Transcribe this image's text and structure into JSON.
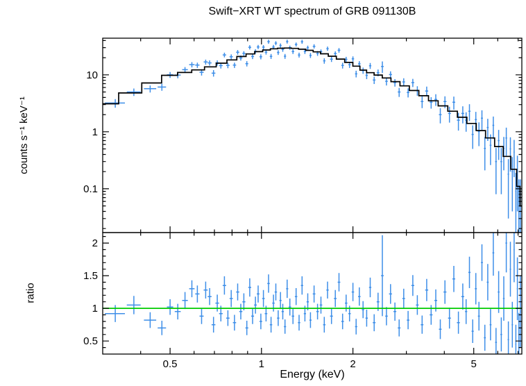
{
  "chart_data": {
    "type": "scatter",
    "title": "Swift−XRT WT spectrum of GRB 091130B",
    "xlabel": "Energy (keV)",
    "x_scale": "log",
    "x_range": [
      0.3,
      7.2
    ],
    "x_major_ticks": [
      0.5,
      1,
      2,
      5
    ],
    "x_major_tick_labels": [
      "0.5",
      "1",
      "2",
      "5"
    ],
    "grid": false,
    "legend": false,
    "colors": {
      "data": "#3d8ee8",
      "model": "#000000",
      "unity_line": "#00cc00",
      "frame": "#000000",
      "background": "#ffffff"
    },
    "points_format": [
      "energy_keV",
      "energy_halfwidth",
      "counts",
      "counts_err",
      "ratio",
      "ratio_err"
    ],
    "points": [
      [
        0.33,
        0.025,
        3.2,
        0.55,
        0.92,
        0.13
      ],
      [
        0.38,
        0.02,
        5.0,
        0.75,
        1.05,
        0.14
      ],
      [
        0.43,
        0.02,
        5.7,
        0.8,
        0.82,
        0.12
      ],
      [
        0.47,
        0.015,
        6.1,
        0.85,
        0.7,
        0.11
      ],
      [
        0.5,
        0.012,
        10.0,
        1.2,
        1.02,
        0.12
      ],
      [
        0.53,
        0.012,
        9.9,
        1.2,
        0.95,
        0.12
      ],
      [
        0.56,
        0.012,
        12.3,
        1.4,
        1.12,
        0.13
      ],
      [
        0.59,
        0.012,
        15.1,
        1.6,
        1.3,
        0.13
      ],
      [
        0.615,
        0.01,
        14.8,
        1.6,
        1.22,
        0.13
      ],
      [
        0.635,
        0.01,
        11.1,
        1.4,
        0.88,
        0.12
      ],
      [
        0.655,
        0.01,
        16.8,
        1.7,
        1.28,
        0.13
      ],
      [
        0.675,
        0.01,
        16.2,
        1.7,
        1.18,
        0.13
      ],
      [
        0.695,
        0.01,
        10.7,
        1.4,
        0.75,
        0.12
      ],
      [
        0.715,
        0.01,
        16.2,
        1.7,
        1.08,
        0.13
      ],
      [
        0.735,
        0.01,
        14.5,
        1.6,
        0.92,
        0.12
      ],
      [
        0.755,
        0.01,
        22.4,
        2.1,
        1.35,
        0.14
      ],
      [
        0.775,
        0.01,
        14.7,
        1.6,
        0.85,
        0.12
      ],
      [
        0.795,
        0.01,
        20.8,
        2.0,
        1.15,
        0.13
      ],
      [
        0.815,
        0.01,
        14.8,
        1.6,
        0.78,
        0.12
      ],
      [
        0.835,
        0.01,
        24.9,
        2.3,
        1.25,
        0.13
      ],
      [
        0.855,
        0.01,
        19.8,
        2.0,
        0.95,
        0.12
      ],
      [
        0.875,
        0.01,
        23.8,
        2.2,
        1.1,
        0.13
      ],
      [
        0.895,
        0.01,
        15.7,
        1.7,
        0.7,
        0.11
      ],
      [
        0.915,
        0.01,
        30.5,
        2.6,
        1.32,
        0.14
      ],
      [
        0.935,
        0.01,
        21.0,
        2.1,
        0.88,
        0.12
      ],
      [
        0.955,
        0.01,
        25.8,
        2.4,
        1.05,
        0.13
      ],
      [
        0.975,
        0.01,
        30.9,
        2.6,
        1.22,
        0.13
      ],
      [
        0.995,
        0.01,
        20.8,
        2.1,
        0.8,
        0.12
      ],
      [
        1.015,
        0.01,
        30.6,
        2.6,
        1.15,
        0.13
      ],
      [
        1.035,
        0.01,
        25.0,
        2.3,
        0.92,
        0.12
      ],
      [
        1.055,
        0.01,
        38.2,
        3.0,
        1.38,
        0.14
      ],
      [
        1.075,
        0.01,
        21.1,
        2.1,
        0.75,
        0.12
      ],
      [
        1.095,
        0.01,
        30.8,
        2.6,
        1.08,
        0.13
      ],
      [
        1.115,
        0.01,
        36.0,
        2.9,
        1.25,
        0.13
      ],
      [
        1.135,
        0.01,
        24.7,
        2.3,
        0.85,
        0.12
      ],
      [
        1.155,
        0.01,
        32.8,
        2.7,
        1.12,
        0.13
      ],
      [
        1.175,
        0.01,
        27.9,
        2.5,
        0.95,
        0.12
      ],
      [
        1.195,
        0.01,
        21.2,
        2.1,
        0.72,
        0.11
      ],
      [
        1.215,
        0.01,
        38.4,
        3.0,
        1.3,
        0.14
      ],
      [
        1.24,
        0.012,
        30.0,
        2.6,
        1.02,
        0.13
      ],
      [
        1.27,
        0.012,
        25.7,
        2.4,
        0.88,
        0.12
      ],
      [
        1.3,
        0.012,
        34.2,
        2.8,
        1.18,
        0.13
      ],
      [
        1.33,
        0.012,
        22.3,
        2.2,
        0.78,
        0.12
      ],
      [
        1.36,
        0.012,
        38.1,
        3.0,
        1.35,
        0.14
      ],
      [
        1.39,
        0.012,
        25.6,
        2.4,
        0.92,
        0.12
      ],
      [
        1.42,
        0.012,
        30.0,
        2.6,
        1.1,
        0.13
      ],
      [
        1.45,
        0.012,
        22.0,
        2.2,
        0.82,
        0.12
      ],
      [
        1.49,
        0.015,
        31.7,
        2.7,
        1.22,
        0.13
      ],
      [
        1.53,
        0.015,
        23.8,
        2.3,
        0.95,
        0.12
      ],
      [
        1.57,
        0.015,
        25.5,
        2.4,
        1.05,
        0.13
      ],
      [
        1.61,
        0.015,
        17.6,
        1.9,
        0.75,
        0.12
      ],
      [
        1.65,
        0.015,
        28.8,
        2.5,
        1.28,
        0.13
      ],
      [
        1.7,
        0.018,
        18.8,
        2.0,
        0.88,
        0.12
      ],
      [
        1.75,
        0.018,
        23.5,
        2.3,
        1.15,
        0.13
      ],
      [
        1.8,
        0.018,
        27.0,
        2.5,
        1.4,
        0.14
      ],
      [
        1.85,
        0.018,
        14.6,
        1.7,
        0.8,
        0.12
      ],
      [
        1.9,
        0.018,
        18.7,
        2.0,
        1.08,
        0.13
      ],
      [
        1.95,
        0.018,
        15.0,
        1.8,
        0.92,
        0.12
      ],
      [
        2.0,
        0.018,
        19.1,
        2.0,
        1.25,
        0.14
      ],
      [
        2.05,
        0.018,
        10.4,
        1.4,
        0.72,
        0.12
      ],
      [
        2.1,
        0.02,
        15.6,
        1.8,
        1.18,
        0.14
      ],
      [
        2.16,
        0.02,
        11.9,
        1.5,
        0.98,
        0.13
      ],
      [
        2.22,
        0.02,
        9.8,
        1.4,
        0.85,
        0.13
      ],
      [
        2.28,
        0.02,
        14.4,
        1.7,
        1.32,
        0.15
      ],
      [
        2.35,
        0.025,
        8.1,
        1.2,
        0.78,
        0.13
      ],
      [
        2.42,
        0.025,
        10.9,
        1.5,
        1.1,
        0.14
      ],
      [
        2.5,
        0.025,
        14.0,
        3.2,
        1.5,
        0.62
      ],
      [
        2.58,
        0.025,
        7.7,
        1.2,
        0.88,
        0.14
      ],
      [
        2.66,
        0.03,
        10.1,
        1.4,
        1.22,
        0.15
      ],
      [
        2.75,
        0.03,
        7.3,
        1.1,
        0.95,
        0.14
      ],
      [
        2.84,
        0.03,
        5.0,
        0.9,
        0.7,
        0.13
      ],
      [
        2.94,
        0.03,
        7.5,
        1.2,
        1.15,
        0.15
      ],
      [
        3.04,
        0.03,
        4.9,
        0.9,
        0.82,
        0.14
      ],
      [
        3.15,
        0.035,
        7.3,
        1.2,
        1.35,
        0.16
      ],
      [
        3.26,
        0.035,
        5.3,
        1.0,
        1.05,
        0.15
      ],
      [
        3.38,
        0.035,
        3.4,
        0.8,
        0.75,
        0.14
      ],
      [
        3.5,
        0.04,
        5.2,
        1.0,
        1.28,
        0.17
      ],
      [
        3.62,
        0.04,
        3.3,
        0.75,
        0.9,
        0.15
      ],
      [
        3.75,
        0.04,
        3.7,
        0.85,
        1.12,
        0.17
      ],
      [
        3.88,
        0.04,
        2.0,
        0.6,
        0.68,
        0.15
      ],
      [
        4.02,
        0.045,
        3.4,
        0.8,
        1.25,
        0.18
      ],
      [
        4.16,
        0.045,
        2.1,
        0.65,
        0.85,
        0.16
      ],
      [
        4.3,
        0.045,
        3.3,
        0.85,
        1.45,
        0.2
      ],
      [
        4.45,
        0.05,
        1.6,
        0.55,
        0.78,
        0.17
      ],
      [
        4.6,
        0.05,
        2.1,
        0.7,
        1.18,
        0.2
      ],
      [
        4.72,
        0.04,
        1.6,
        0.6,
        0.95,
        0.19
      ],
      [
        4.84,
        0.04,
        2.3,
        0.75,
        1.55,
        0.24
      ],
      [
        4.96,
        0.04,
        0.9,
        0.4,
        0.65,
        0.18
      ],
      [
        5.08,
        0.04,
        1.64,
        0.6,
        1.3,
        0.24
      ],
      [
        5.2,
        0.04,
        1.01,
        0.45,
        0.88,
        0.22
      ],
      [
        5.32,
        0.04,
        1.73,
        0.65,
        1.7,
        0.28
      ],
      [
        5.44,
        0.04,
        0.51,
        0.3,
        0.55,
        0.2
      ],
      [
        5.56,
        0.04,
        1.19,
        0.5,
        1.4,
        0.28
      ],
      [
        5.68,
        0.04,
        0.58,
        0.32,
        0.75,
        0.24
      ],
      [
        5.8,
        0.04,
        1.3,
        0.55,
        1.85,
        0.35
      ],
      [
        5.92,
        0.04,
        0.3,
        0.22,
        0.48,
        0.22
      ],
      [
        6.04,
        0.04,
        0.7,
        0.38,
        1.25,
        0.32
      ],
      [
        6.16,
        0.04,
        0.3,
        0.22,
        0.6,
        0.26
      ],
      [
        6.28,
        0.04,
        0.51,
        0.3,
        1.15,
        0.34
      ],
      [
        6.4,
        0.04,
        0.78,
        0.4,
        2.0,
        0.45
      ],
      [
        6.5,
        0.035,
        0.18,
        0.15,
        0.52,
        0.28
      ],
      [
        6.6,
        0.035,
        0.5,
        0.3,
        1.6,
        0.42
      ],
      [
        6.7,
        0.035,
        0.2,
        0.16,
        0.75,
        0.35
      ],
      [
        6.79,
        0.03,
        0.44,
        0.28,
        1.9,
        0.5
      ],
      [
        6.88,
        0.03,
        0.09,
        0.1,
        0.45,
        0.3
      ],
      [
        6.96,
        0.03,
        0.21,
        0.17,
        1.3,
        0.48
      ],
      [
        7.04,
        0.03,
        0.066,
        0.08,
        0.55,
        0.38
      ],
      [
        7.12,
        0.03,
        0.066,
        0.08,
        0.95,
        0.55
      ]
    ],
    "panels": [
      {
        "name": "spectrum",
        "ylabel": "counts s⁻¹ keV⁻¹",
        "y_scale": "log",
        "y_range": [
          0.017,
          44
        ],
        "y_major_ticks": [
          0.1,
          1,
          10
        ],
        "y_major_tick_labels": [
          "0.1",
          "1",
          "10"
        ],
        "model": {
          "energy": [
            0.31,
            0.37,
            0.44,
            0.5,
            0.56,
            0.62,
            0.68,
            0.74,
            0.8,
            0.86,
            0.92,
            0.98,
            1.04,
            1.1,
            1.16,
            1.22,
            1.29,
            1.36,
            1.44,
            1.52,
            1.61,
            1.71,
            1.82,
            1.94,
            2.06,
            2.16,
            2.28,
            2.42,
            2.58,
            2.76,
            2.96,
            3.18,
            3.42,
            3.68,
            3.96,
            4.26,
            4.58,
            4.92,
            5.28,
            5.66,
            6.06,
            6.45,
            6.8,
            7.05,
            7.16
          ],
          "counts": [
            3.1,
            4.8,
            7.2,
            9.8,
            11.0,
            12.2,
            13.8,
            16.0,
            18.3,
            21.0,
            23.3,
            25.5,
            27.3,
            28.6,
            29.3,
            29.5,
            29.1,
            28.2,
            26.9,
            25.3,
            23.4,
            21.2,
            18.9,
            16.5,
            14.2,
            12.1,
            10.9,
            9.9,
            8.8,
            7.6,
            6.4,
            5.3,
            4.3,
            3.5,
            2.85,
            2.3,
            1.8,
            1.4,
            1.05,
            0.78,
            0.55,
            0.37,
            0.22,
            0.11,
            0.05
          ]
        }
      },
      {
        "name": "ratio",
        "ylabel": "ratio",
        "y_scale": "linear",
        "y_range": [
          0.3,
          2.16
        ],
        "y_major_ticks": [
          0.5,
          1,
          1.5,
          2
        ],
        "y_major_tick_labels": [
          "0.5",
          "1",
          "1.5",
          "2"
        ],
        "unity_line": 1
      }
    ]
  }
}
